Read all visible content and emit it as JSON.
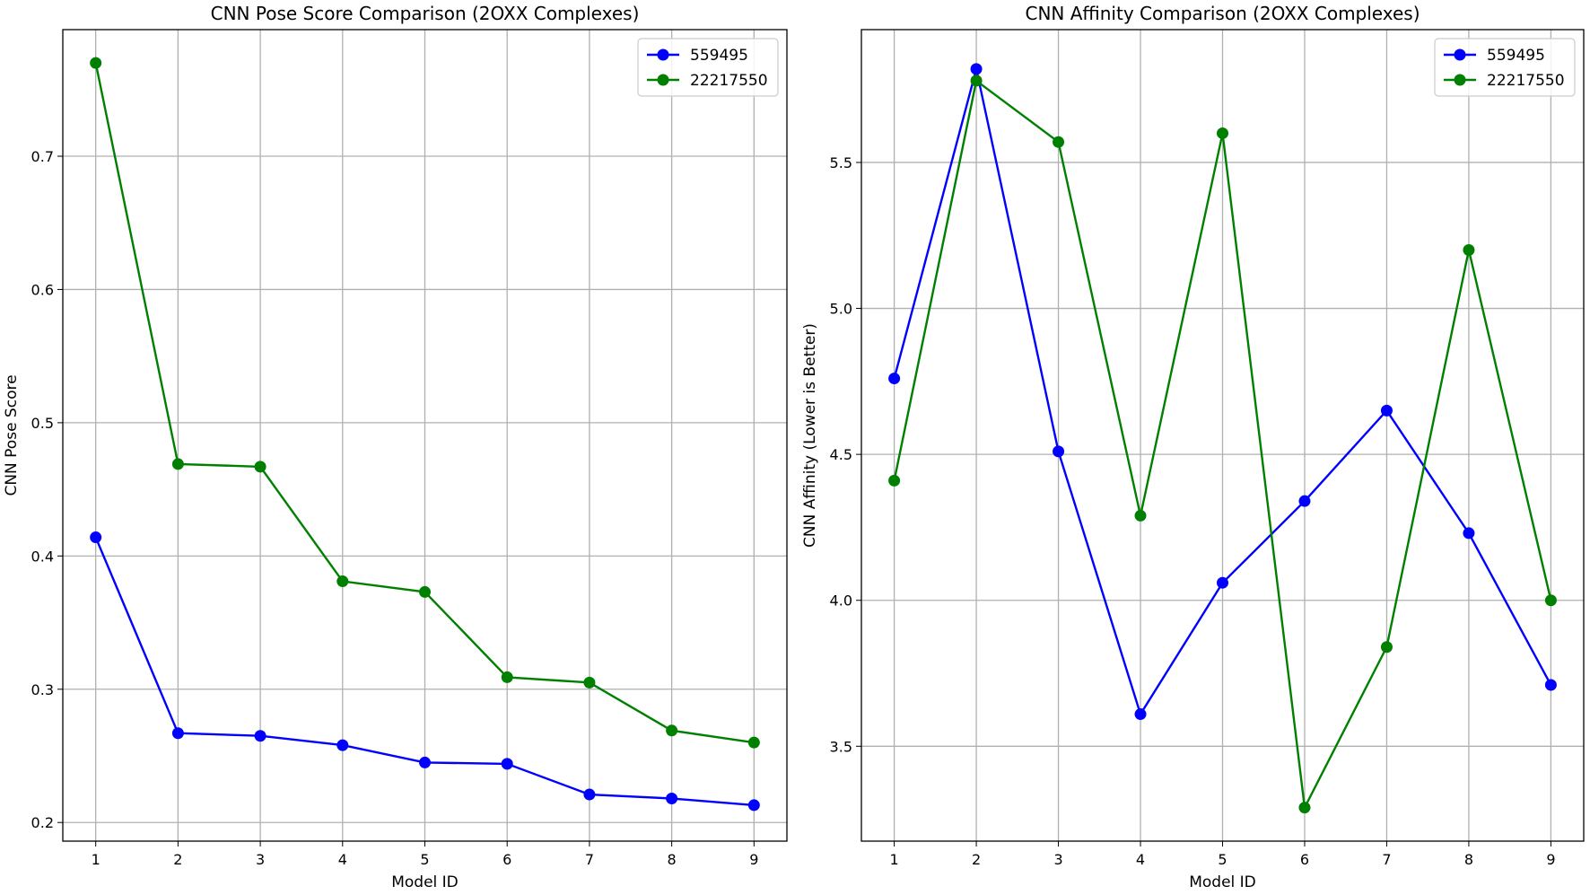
{
  "chart_data": [
    {
      "type": "line",
      "title": "CNN Pose Score Comparison (2OXX Complexes)",
      "xlabel": "Model ID",
      "ylabel": "CNN Pose Score",
      "x": [
        1,
        2,
        3,
        4,
        5,
        6,
        7,
        8,
        9
      ],
      "xticks": [
        "1",
        "2",
        "3",
        "4",
        "5",
        "6",
        "7",
        "8",
        "9"
      ],
      "yticks": [
        "0.2",
        "0.3",
        "0.4",
        "0.5",
        "0.6",
        "0.7"
      ],
      "ytick_values": [
        0.2,
        0.3,
        0.4,
        0.5,
        0.6,
        0.7
      ],
      "xlim": [
        0.6,
        9.4
      ],
      "ylim": [
        0.186,
        0.795
      ],
      "grid": true,
      "legend_position": "top-right",
      "series": [
        {
          "name": "559495",
          "color": "#0000ff",
          "values": [
            0.414,
            0.267,
            0.265,
            0.258,
            0.245,
            0.244,
            0.221,
            0.218,
            0.213
          ]
        },
        {
          "name": "22217550",
          "color": "#008000",
          "values": [
            0.77,
            0.469,
            0.467,
            0.381,
            0.373,
            0.309,
            0.305,
            0.269,
            0.26
          ]
        }
      ]
    },
    {
      "type": "line",
      "title": "CNN Affinity Comparison (2OXX Complexes)",
      "xlabel": "Model ID",
      "ylabel": "CNN Affinity (Lower is Better)",
      "x": [
        1,
        2,
        3,
        4,
        5,
        6,
        7,
        8,
        9
      ],
      "xticks": [
        "1",
        "2",
        "3",
        "4",
        "5",
        "6",
        "7",
        "8",
        "9"
      ],
      "yticks": [
        "3.5",
        "4.0",
        "4.5",
        "5.0",
        "5.5"
      ],
      "ytick_values": [
        3.5,
        4.0,
        4.5,
        5.0,
        5.5
      ],
      "xlim": [
        0.6,
        9.4
      ],
      "ylim": [
        3.175,
        5.955
      ],
      "grid": true,
      "legend_position": "top-right",
      "series": [
        {
          "name": "559495",
          "color": "#0000ff",
          "values": [
            4.76,
            5.82,
            4.51,
            3.61,
            4.06,
            4.34,
            4.65,
            4.23,
            3.71
          ]
        },
        {
          "name": "22217550",
          "color": "#008000",
          "values": [
            4.41,
            5.78,
            5.57,
            4.29,
            5.6,
            3.29,
            3.84,
            5.2,
            4.0
          ]
        }
      ]
    }
  ]
}
